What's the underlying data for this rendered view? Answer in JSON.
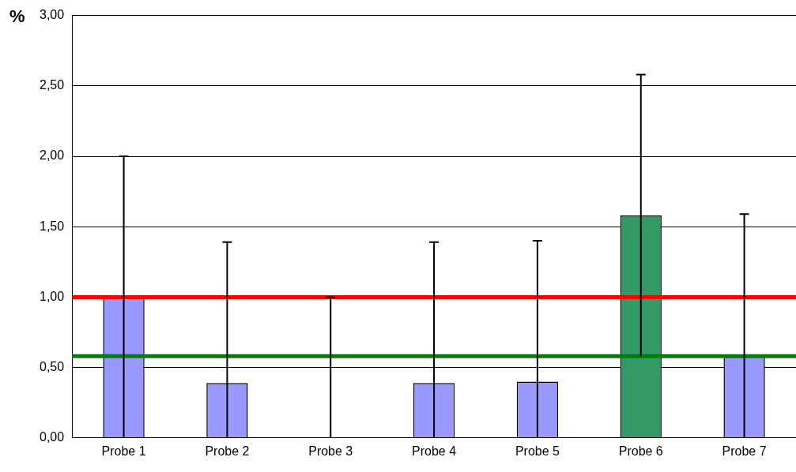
{
  "chart_data": {
    "type": "bar",
    "ylabel": "%",
    "categories": [
      "Probe 1",
      "Probe 2",
      "Probe 3",
      "Probe 4",
      "Probe 5",
      "Probe 6",
      "Probe 7"
    ],
    "values": [
      1.0,
      0.39,
      0,
      0.39,
      0.4,
      1.58,
      0.58
    ],
    "colors": [
      "#9999ff",
      "#9999ff",
      "#9999ff",
      "#9999ff",
      "#9999ff",
      "#339966",
      "#9999ff"
    ],
    "errors": [
      [
        0,
        2.0
      ],
      [
        0,
        1.39
      ],
      [
        0,
        1.0
      ],
      [
        0,
        1.39
      ],
      [
        0,
        1.4
      ],
      [
        0.58,
        2.58
      ],
      [
        0,
        1.59
      ]
    ],
    "ylim": [
      0,
      3
    ],
    "yticks": [
      {
        "value": 0,
        "label": "0,00"
      },
      {
        "value": 0.5,
        "label": "0,50"
      },
      {
        "value": 1,
        "label": "1,00"
      },
      {
        "value": 1.5,
        "label": "1,50"
      },
      {
        "value": 2,
        "label": "2,00"
      },
      {
        "value": 2.5,
        "label": "2,50"
      },
      {
        "value": 3,
        "label": "3,00"
      }
    ],
    "ref_lines": [
      {
        "axis": "y",
        "value": 1.0,
        "color": "#ff0000"
      },
      {
        "axis": "y",
        "value": 0.58,
        "color": "#008000"
      }
    ],
    "grid": "y",
    "legend": false
  }
}
